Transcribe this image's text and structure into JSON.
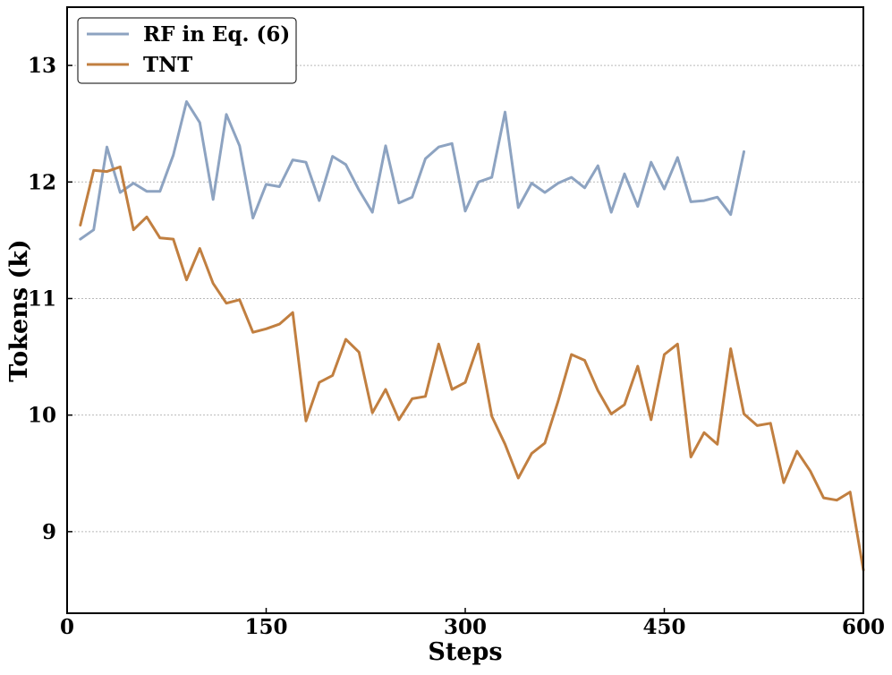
{
  "chart_data": {
    "type": "line",
    "title": "",
    "xlabel": "Steps",
    "ylabel": "Tokens (k)",
    "xlim": [
      0,
      600
    ],
    "ylim": [
      8.3,
      13.5
    ],
    "xticks": [
      0,
      150,
      300,
      450,
      600
    ],
    "yticks": [
      9,
      10,
      11,
      12,
      13
    ],
    "grid": "horizontal dotted",
    "legend_position": "upper-left",
    "series": [
      {
        "name": "RF in Eq. (6)",
        "color": "#8DA3C1",
        "x": [
          10,
          20,
          30,
          40,
          50,
          60,
          70,
          80,
          90,
          100,
          110,
          120,
          130,
          140,
          150,
          160,
          170,
          180,
          190,
          200,
          210,
          220,
          230,
          240,
          250,
          260,
          270,
          280,
          290,
          300,
          310,
          320,
          330,
          340,
          350,
          360,
          370,
          380,
          390,
          400,
          410,
          420,
          430,
          440,
          450,
          460,
          470,
          480,
          490,
          500,
          510
        ],
        "y": [
          11.51,
          11.59,
          12.3,
          11.91,
          11.99,
          11.92,
          11.92,
          12.23,
          12.69,
          12.51,
          11.85,
          12.58,
          12.31,
          11.69,
          11.98,
          11.96,
          12.19,
          12.17,
          11.84,
          12.22,
          12.15,
          11.93,
          11.74,
          12.31,
          11.82,
          11.87,
          12.2,
          12.3,
          12.33,
          11.75,
          12.0,
          12.04,
          12.6,
          11.78,
          11.99,
          11.91,
          11.99,
          12.04,
          11.95,
          12.14,
          11.74,
          12.07,
          11.79,
          12.17,
          11.94,
          12.21,
          11.83,
          11.84,
          11.87,
          11.72,
          12.26
        ]
      },
      {
        "name": "TNT",
        "color": "#C17F40",
        "x": [
          10,
          20,
          30,
          40,
          50,
          60,
          70,
          80,
          90,
          100,
          110,
          120,
          130,
          140,
          150,
          160,
          170,
          180,
          190,
          200,
          210,
          220,
          230,
          240,
          250,
          260,
          270,
          280,
          290,
          300,
          310,
          320,
          330,
          340,
          350,
          360,
          370,
          380,
          390,
          400,
          410,
          420,
          430,
          440,
          450,
          460,
          470,
          480,
          490,
          500,
          510,
          520,
          530,
          540,
          550,
          560,
          570,
          580,
          590,
          600
        ],
        "y": [
          11.63,
          12.1,
          12.09,
          12.13,
          11.59,
          11.7,
          11.52,
          11.51,
          11.16,
          11.43,
          11.13,
          10.96,
          10.99,
          10.71,
          10.74,
          10.78,
          10.88,
          9.95,
          10.28,
          10.34,
          10.65,
          10.54,
          10.02,
          10.22,
          9.96,
          10.14,
          10.16,
          10.61,
          10.22,
          10.28,
          10.61,
          9.99,
          9.75,
          9.46,
          9.67,
          9.76,
          10.12,
          10.52,
          10.47,
          10.21,
          10.01,
          10.09,
          10.42,
          9.96,
          10.52,
          10.61,
          9.64,
          9.85,
          9.75,
          10.57,
          10.01,
          9.91,
          9.93,
          9.42,
          9.69,
          9.52,
          9.29,
          9.27,
          9.34,
          8.67
        ]
      }
    ]
  }
}
